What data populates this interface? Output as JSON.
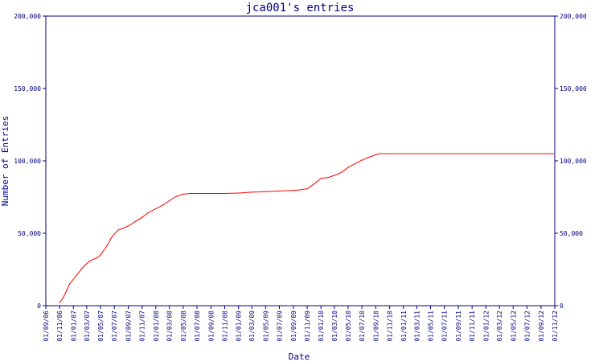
{
  "chart_data": {
    "type": "line",
    "title": "jca001's entries",
    "xlabel": "Date",
    "ylabel": "Number of Entries",
    "ylim": [
      0,
      200000
    ],
    "yticks": [
      0,
      50000,
      100000,
      150000,
      200000
    ],
    "ytick_labels": [
      "0",
      "50,000",
      "100,000",
      "150,000",
      "200,000"
    ],
    "x_categories": [
      "01/09/06",
      "01/11/06",
      "01/01/07",
      "01/03/07",
      "01/05/07",
      "01/07/07",
      "01/09/07",
      "01/11/07",
      "01/01/08",
      "01/03/08",
      "01/05/08",
      "01/07/08",
      "01/09/08",
      "01/11/08",
      "01/01/09",
      "01/03/09",
      "01/05/09",
      "01/07/09",
      "01/09/09",
      "01/11/09",
      "01/01/10",
      "01/03/10",
      "01/05/10",
      "01/07/10",
      "01/09/10",
      "01/11/10",
      "01/01/11",
      "01/03/11",
      "01/05/11",
      "01/07/11",
      "01/09/11",
      "01/11/11",
      "01/01/12",
      "01/03/12",
      "01/05/12",
      "01/07/12",
      "01/09/12",
      "01/11/12"
    ],
    "series": [
      {
        "color": "#ff0000",
        "points": [
          [
            "01/11/06",
            2000
          ],
          [
            "15/11/06",
            5000
          ],
          [
            "01/12/06",
            10000
          ],
          [
            "15/12/06",
            15000
          ],
          [
            "15/01/07",
            21000
          ],
          [
            "15/02/07",
            27000
          ],
          [
            "15/03/07",
            31000
          ],
          [
            "15/04/07",
            33000
          ],
          [
            "01/05/07",
            35000
          ],
          [
            "01/06/07",
            42000
          ],
          [
            "15/06/07",
            46000
          ],
          [
            "01/07/07",
            49500
          ],
          [
            "20/07/07",
            52500
          ],
          [
            "01/08/07",
            53000
          ],
          [
            "01/09/07",
            55000
          ],
          [
            "01/10/07",
            58000
          ],
          [
            "01/11/07",
            61000
          ],
          [
            "01/12/07",
            64500
          ],
          [
            "01/01/08",
            67000
          ],
          [
            "01/02/08",
            69500
          ],
          [
            "01/03/08",
            72500
          ],
          [
            "01/04/08",
            75500
          ],
          [
            "01/05/08",
            77000
          ],
          [
            "01/06/08",
            77500
          ],
          [
            "01/07/08",
            77500
          ],
          [
            "01/09/08",
            77500
          ],
          [
            "01/11/08",
            77500
          ],
          [
            "01/01/09",
            77800
          ],
          [
            "01/03/09",
            78400
          ],
          [
            "01/05/09",
            78800
          ],
          [
            "01/07/09",
            79200
          ],
          [
            "01/09/09",
            79600
          ],
          [
            "01/10/09",
            80000
          ],
          [
            "01/11/09",
            80800
          ],
          [
            "01/12/09",
            84000
          ],
          [
            "01/01/10",
            88000
          ],
          [
            "01/02/10",
            88500
          ],
          [
            "01/03/10",
            90000
          ],
          [
            "01/04/10",
            92000
          ],
          [
            "01/05/10",
            95500
          ],
          [
            "01/06/10",
            98000
          ],
          [
            "01/07/10",
            100500
          ],
          [
            "01/08/10",
            102500
          ],
          [
            "15/09/10",
            105000
          ],
          [
            "01/11/10",
            105000
          ],
          [
            "01/11/12",
            105000
          ]
        ]
      }
    ],
    "grid": false
  }
}
